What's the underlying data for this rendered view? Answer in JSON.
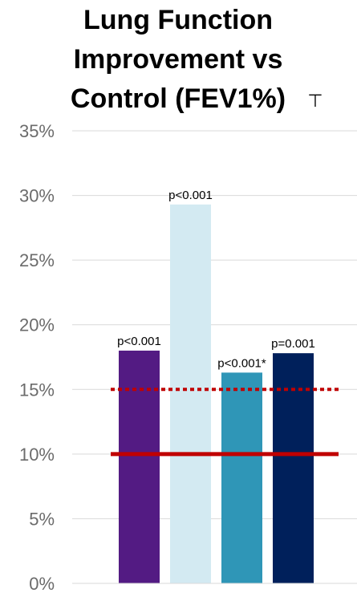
{
  "chart_data": {
    "type": "bar",
    "title_lines": [
      "Lung Function",
      "Improvement vs",
      "Control (FEV1%)"
    ],
    "title_mark": "⊤",
    "xlabel": "",
    "ylabel": "",
    "ylim": [
      0,
      35
    ],
    "yticks": [
      0,
      5,
      10,
      15,
      20,
      25,
      30,
      35
    ],
    "ytick_labels": [
      "0%",
      "5%",
      "10%",
      "15%",
      "20%",
      "25%",
      "30%",
      "35%"
    ],
    "grid": true,
    "bars": [
      {
        "value": 18.0,
        "label": "p<0.001",
        "color": "#531b83"
      },
      {
        "value": 29.3,
        "label": "p<0.001",
        "color": "#d3eaf2"
      },
      {
        "value": 16.3,
        "label": "p<0.001*",
        "color": "#2f96b7"
      },
      {
        "value": 17.8,
        "label": "p=0.001",
        "color": "#00205b"
      }
    ],
    "reference_lines": [
      {
        "value": 15,
        "style": "dotted",
        "color": "#c00000"
      },
      {
        "value": 10,
        "style": "solid",
        "color": "#c00000"
      }
    ]
  }
}
